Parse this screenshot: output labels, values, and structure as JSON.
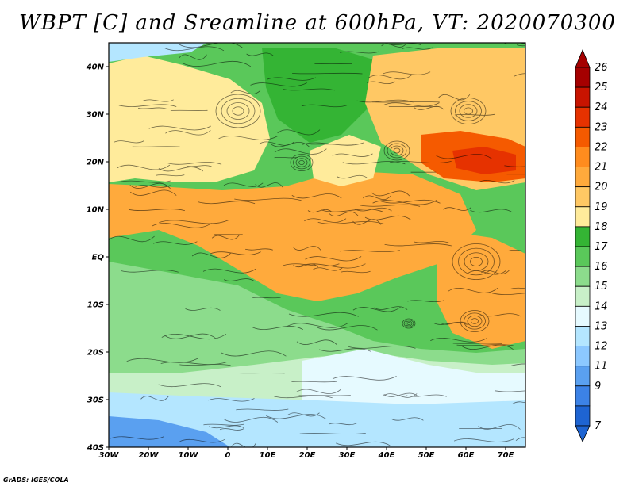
{
  "title": "WBPT [C] and Sreamline at 600hPa, VT: 2020070300",
  "credit": "GrADS: IGES/COLA",
  "map": {
    "lon_labels": [
      "30W",
      "20W",
      "10W",
      "0",
      "10E",
      "20E",
      "30E",
      "40E",
      "50E",
      "60E",
      "70E"
    ],
    "lat_labels": [
      "40N",
      "30N",
      "20N",
      "10N",
      "EQ",
      "10S",
      "20S",
      "30S",
      "40S"
    ],
    "lon_range": [
      -30,
      75
    ],
    "lat_range": [
      -40,
      45
    ]
  },
  "colorbar": {
    "levels": [
      "26",
      "25",
      "24",
      "23",
      "22",
      "21",
      "20",
      "19",
      "18",
      "17",
      "16",
      "15",
      "14",
      "13",
      "12",
      "11",
      "9",
      "7"
    ],
    "colors": [
      "#a50000",
      "#c81400",
      "#e63200",
      "#f55a00",
      "#ff8c1e",
      "#ffaa3c",
      "#ffc864",
      "#ffeb9b",
      "#34b434",
      "#5ac85a",
      "#8cdc8c",
      "#c8f0c8",
      "#e6faff",
      "#b4e6ff",
      "#8cc8ff",
      "#5aa0f0",
      "#3c82e6",
      "#1e64d2"
    ]
  }
}
